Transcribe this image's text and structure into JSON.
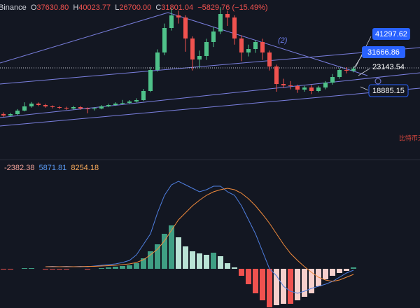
{
  "header": {
    "exchange": "Binance",
    "ohlc": [
      {
        "label": "O",
        "value": "37630.80"
      },
      {
        "label": "H",
        "value": "40023.77"
      },
      {
        "label": "L",
        "value": "26700.00"
      },
      {
        "label": "C",
        "value": "31801.04"
      }
    ],
    "change": "−5829.76 (−15.49%)"
  },
  "annotations": {
    "wave": "(2)",
    "note": "比特币天"
  },
  "price_labels": [
    "41297.62",
    "31666.86",
    "23143.54",
    "18885.15"
  ],
  "chart_data": [
    {
      "type": "candlestick",
      "ylim": [
        5000,
        72000
      ],
      "up_color": "#4fc28a",
      "down_color": "#f0524f",
      "open": [
        23500,
        22860,
        23460,
        24950,
        26740,
        27930,
        27330,
        26740,
        26440,
        26140,
        25840,
        26440,
        25840,
        25540,
        25840,
        26740,
        27330,
        27930,
        28220,
        28820,
        29420,
        33290,
        42220,
        49670,
        60090,
        65450,
        64560,
        55620,
        46690,
        48180,
        54130,
        58600,
        66040,
        64560,
        55620,
        49670,
        51150,
        54130,
        49670,
        43710,
        36260,
        35670,
        35370,
        33880,
        34780,
        33290,
        34780,
        36860,
        39240,
        42220,
        41920
      ],
      "high": [
        24200,
        24000,
        25600,
        28500,
        28600,
        28400,
        27800,
        27200,
        26900,
        26600,
        27000,
        26900,
        26300,
        26400,
        27300,
        27900,
        28500,
        29500,
        29400,
        30200,
        34200,
        43500,
        51000,
        62000,
        68500,
        67500,
        65500,
        56500,
        50500,
        55500,
        60500,
        69000,
        67500,
        65500,
        57000,
        53000,
        55000,
        55500,
        50500,
        44500,
        38500,
        37500,
        36000,
        35500,
        35800,
        35500,
        37500,
        40500,
        43000,
        43400,
        43800
      ],
      "low": [
        22300,
        22500,
        23000,
        24600,
        26200,
        26800,
        26200,
        25900,
        25600,
        25300,
        25400,
        25300,
        23800,
        25000,
        25500,
        26400,
        27000,
        27600,
        27900,
        28400,
        29000,
        32800,
        41500,
        48500,
        59000,
        62000,
        50000,
        42000,
        43000,
        46500,
        52000,
        57500,
        61000,
        53000,
        46000,
        48000,
        49500,
        46500,
        42000,
        33000,
        34500,
        34000,
        32500,
        33000,
        32000,
        32700,
        34000,
        36000,
        38500,
        40800,
        41200
      ],
      "close": [
        22860,
        23460,
        24950,
        26740,
        27930,
        27330,
        26740,
        26440,
        26140,
        25840,
        26440,
        25840,
        25540,
        25840,
        26740,
        27330,
        27930,
        28220,
        28820,
        29420,
        33290,
        42220,
        49670,
        60090,
        65450,
        64560,
        55620,
        46690,
        48180,
        54130,
        58600,
        66040,
        64560,
        55620,
        49670,
        51150,
        54130,
        49670,
        43710,
        36260,
        35670,
        35370,
        33880,
        34780,
        33290,
        34780,
        36860,
        39240,
        42220,
        41920,
        42820
      ]
    },
    {
      "type": "macd",
      "ylim": [
        -5600,
        13900
      ],
      "readout": [
        "-2382.38",
        "5871.81",
        "8254.18"
      ],
      "readout_colors": [
        "#f2a39a",
        "#5b9cf6",
        "#ffae5c"
      ],
      "hist_colors": [
        "#3f9f84",
        "#b9e3d5",
        "#f0524f",
        "#f6d0cc"
      ],
      "histogram": [
        -100,
        -100,
        0,
        100,
        100,
        0,
        -100,
        -100,
        -100,
        -100,
        0,
        0,
        -100,
        0,
        100,
        200,
        300,
        400,
        500,
        800,
        1500,
        2500,
        3500,
        5000,
        6200,
        4500,
        3200,
        2500,
        2200,
        2000,
        2300,
        1800,
        800,
        200,
        -1000,
        -2200,
        -3500,
        -4500,
        -5500,
        -5200,
        -5000,
        -5000,
        -4500,
        -4000,
        -3500,
        -2500,
        -1500,
        -1000,
        -600,
        -300,
        200
      ],
      "series": [
        {
          "color": "#4f7fe0",
          "values": [
            null,
            null,
            null,
            null,
            null,
            null,
            300,
            350,
            300,
            350,
            300,
            350,
            300,
            400,
            500,
            600,
            700,
            900,
            1200,
            2000,
            3500,
            5000,
            8000,
            10500,
            12000,
            12500,
            12000,
            11500,
            11000,
            11300,
            11800,
            11800,
            11000,
            10500,
            9000,
            7000,
            5000,
            2500,
            0,
            -1000,
            -2500,
            -3200,
            -3500,
            -3200,
            -2800,
            -2500,
            -2200,
            -1800,
            -1200,
            -600,
            -200
          ]
        },
        {
          "color": "#f08a3c",
          "values": [
            null,
            null,
            null,
            null,
            null,
            null,
            300,
            300,
            300,
            300,
            300,
            300,
            350,
            350,
            400,
            450,
            500,
            600,
            700,
            900,
            1300,
            2000,
            2800,
            4000,
            5500,
            7000,
            8000,
            9000,
            9800,
            10500,
            11000,
            11300,
            11500,
            11300,
            10800,
            10000,
            9000,
            7800,
            6500,
            5000,
            3500,
            2200,
            1200,
            300,
            -500,
            -1200,
            -1600,
            -1800,
            -1600,
            -1200,
            -800
          ]
        }
      ]
    }
  ]
}
